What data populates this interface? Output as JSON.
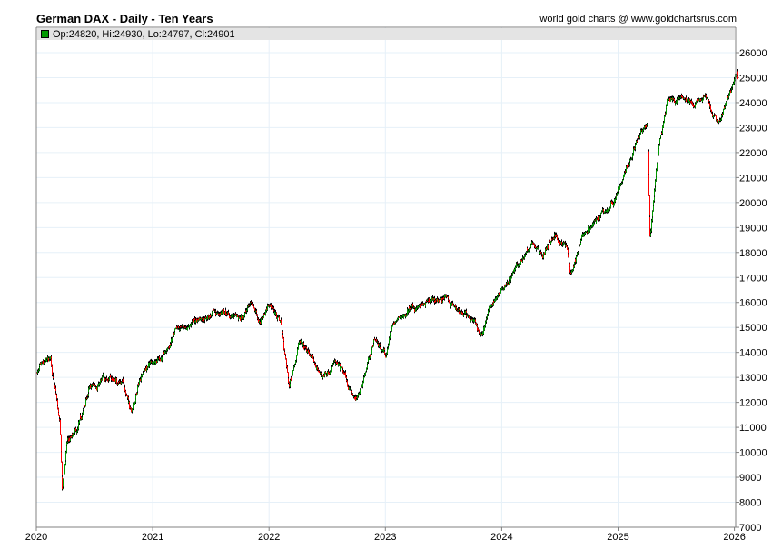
{
  "header": {
    "title": "German DAX - Daily - Ten Years",
    "credit": "world gold charts @ www.goldchartsrus.com"
  },
  "legend": {
    "ohlc": "Op:24820, Hi:24930, Lo:24797, Cl:24901"
  },
  "chart_data": {
    "type": "ohlc",
    "title": "German DAX - Daily - Ten Years",
    "xlabel": "",
    "ylabel": "",
    "xlim": [
      2020,
      2026.05
    ],
    "ylim": [
      7000,
      26000
    ],
    "x_ticks": [
      "2020",
      "2021",
      "2022",
      "2023",
      "2024",
      "2025",
      "2026"
    ],
    "y_ticks": [
      "7000",
      "8000",
      "9000",
      "10000",
      "11000",
      "12000",
      "13000",
      "14000",
      "15000",
      "16000",
      "17000",
      "18000",
      "19000",
      "20000",
      "21000",
      "22000",
      "23000",
      "24000",
      "25000",
      "26000"
    ],
    "grid": true,
    "colors": {
      "up": "#009900",
      "down": "#ff0000",
      "wick": "#000000",
      "grid": "#e6f0f8",
      "axis": "#808080"
    },
    "last_bar": {
      "open": 24820,
      "high": 24930,
      "low": 24797,
      "close": 24901
    },
    "price_path": [
      [
        2020.0,
        13200
      ],
      [
        2020.12,
        13700
      ],
      [
        2020.2,
        11000
      ],
      [
        2020.22,
        8400
      ],
      [
        2020.26,
        10400
      ],
      [
        2020.35,
        10800
      ],
      [
        2020.45,
        12500
      ],
      [
        2020.6,
        13000
      ],
      [
        2020.75,
        12800
      ],
      [
        2020.82,
        11600
      ],
      [
        2020.9,
        13200
      ],
      [
        2021.0,
        13700
      ],
      [
        2021.1,
        13900
      ],
      [
        2021.2,
        14800
      ],
      [
        2021.4,
        15400
      ],
      [
        2021.6,
        15600
      ],
      [
        2021.75,
        15300
      ],
      [
        2021.85,
        16100
      ],
      [
        2021.92,
        15200
      ],
      [
        2022.0,
        16000
      ],
      [
        2022.1,
        15200
      ],
      [
        2022.17,
        12600
      ],
      [
        2022.25,
        14400
      ],
      [
        2022.35,
        13900
      ],
      [
        2022.45,
        13000
      ],
      [
        2022.55,
        13600
      ],
      [
        2022.65,
        13000
      ],
      [
        2022.74,
        12000
      ],
      [
        2022.82,
        13200
      ],
      [
        2022.9,
        14500
      ],
      [
        2023.0,
        13900
      ],
      [
        2023.05,
        15000
      ],
      [
        2023.2,
        15700
      ],
      [
        2023.35,
        15900
      ],
      [
        2023.5,
        16200
      ],
      [
        2023.55,
        16000
      ],
      [
        2023.62,
        15800
      ],
      [
        2023.75,
        15300
      ],
      [
        2023.82,
        14700
      ],
      [
        2023.9,
        15800
      ],
      [
        2024.0,
        16700
      ],
      [
        2024.15,
        17500
      ],
      [
        2024.25,
        18400
      ],
      [
        2024.35,
        17900
      ],
      [
        2024.45,
        18700
      ],
      [
        2024.55,
        18300
      ],
      [
        2024.59,
        17200
      ],
      [
        2024.7,
        18700
      ],
      [
        2024.8,
        19300
      ],
      [
        2024.95,
        19900
      ],
      [
        2025.1,
        21700
      ],
      [
        2025.2,
        22800
      ],
      [
        2025.25,
        23000
      ],
      [
        2025.27,
        18500
      ],
      [
        2025.35,
        22300
      ],
      [
        2025.42,
        24000
      ],
      [
        2025.55,
        24300
      ],
      [
        2025.65,
        23800
      ],
      [
        2025.75,
        24200
      ],
      [
        2025.85,
        23100
      ],
      [
        2025.95,
        24300
      ],
      [
        2026.02,
        25300
      ],
      [
        2026.03,
        24901
      ]
    ]
  }
}
